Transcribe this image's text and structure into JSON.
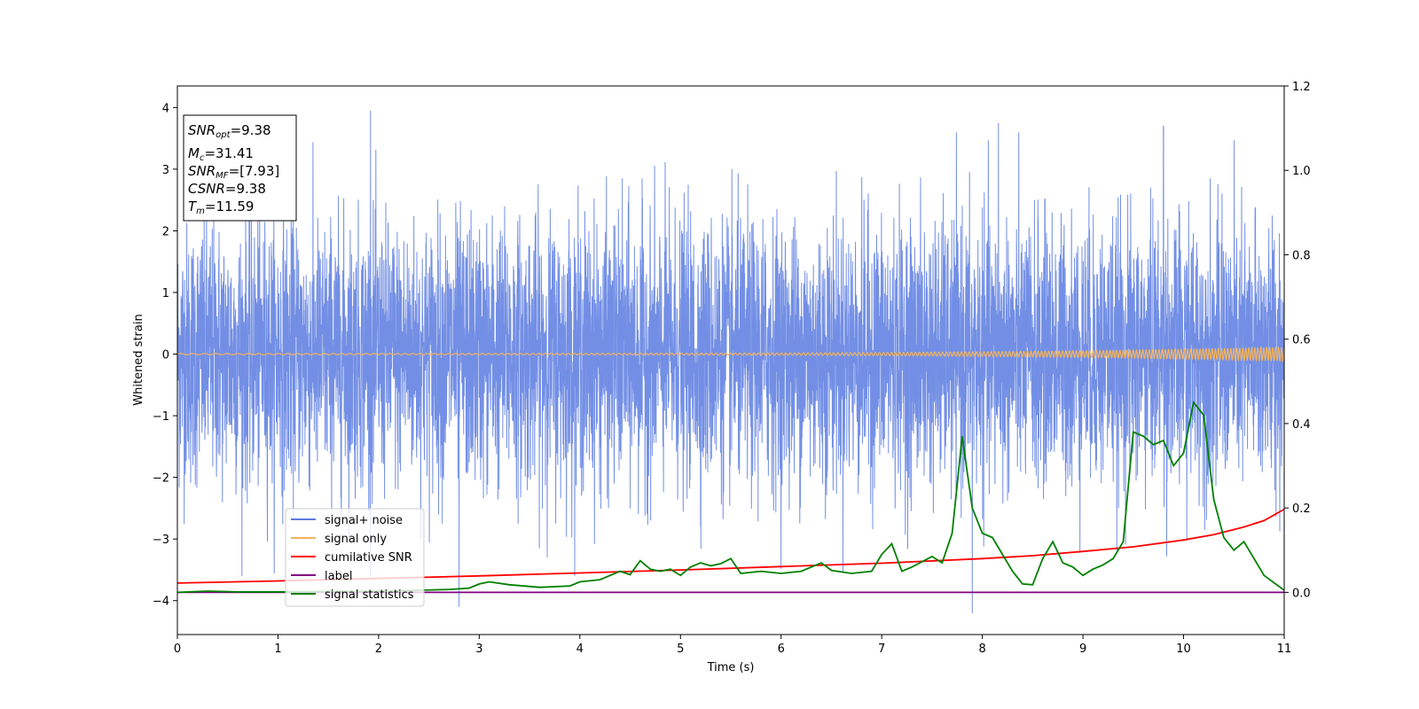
{
  "chart_data": {
    "type": "line",
    "title": "",
    "xlabel": "Time (s)",
    "ylabel": "Whitened strain",
    "xlim": [
      0,
      11
    ],
    "ylim": [
      -4.55,
      4.35
    ],
    "y2lim": [
      -0.1,
      1.2
    ],
    "x_ticks": [
      0,
      1,
      2,
      3,
      4,
      5,
      6,
      7,
      8,
      9,
      10,
      11
    ],
    "y_ticks": [
      -4,
      -3,
      -2,
      -1,
      0,
      1,
      2,
      3,
      4
    ],
    "y2_ticks": [
      "0.0",
      "0.2",
      "0.4",
      "0.6",
      "0.8",
      "1.0",
      "1.2"
    ],
    "grid": false,
    "legend_position": "lower-left",
    "colors": {
      "noise": "#5b7be0",
      "signal": "#f5b35a",
      "cumulative": "#ff0000",
      "label": "#800080",
      "statistics": "#008000"
    },
    "series": [
      {
        "name": "signal+ noise",
        "axis": "left",
        "description_sampled": "noisy whitened strain, approx. Gaussian, std ~1, range about -4.2 to 3.95",
        "notable_peaks": [
          [
            1.92,
            3.95
          ],
          [
            2.8,
            -4.1
          ],
          [
            7.9,
            -4.2
          ],
          [
            8.16,
            3.75
          ],
          [
            9.8,
            3.7
          ]
        ]
      },
      {
        "name": "signal only",
        "axis": "left",
        "chirp": {
          "amplitude_start": 0.01,
          "amplitude_end": 0.11,
          "t_end": 11
        }
      },
      {
        "name": "cumilative SNR",
        "axis": "right",
        "x": [
          0,
          1,
          2,
          3,
          4,
          5,
          6,
          7,
          8,
          8.5,
          9,
          9.5,
          10,
          10.3,
          10.6,
          10.8,
          11
        ],
        "y": [
          0.022,
          0.027,
          0.033,
          0.039,
          0.046,
          0.053,
          0.061,
          0.069,
          0.08,
          0.087,
          0.097,
          0.108,
          0.124,
          0.137,
          0.155,
          0.17,
          0.197
        ]
      },
      {
        "name": "label",
        "axis": "right",
        "x": [
          0,
          11
        ],
        "y": [
          0.0,
          0.0
        ]
      },
      {
        "name": "signal statistics",
        "axis": "right",
        "x": [
          0,
          0.3,
          0.6,
          1,
          1.5,
          2,
          2.4,
          2.7,
          2.9,
          3.0,
          3.1,
          3.3,
          3.6,
          3.9,
          4.0,
          4.2,
          4.4,
          4.5,
          4.6,
          4.7,
          4.8,
          4.9,
          5.0,
          5.1,
          5.2,
          5.3,
          5.4,
          5.5,
          5.6,
          5.8,
          6.0,
          6.2,
          6.4,
          6.5,
          6.7,
          6.9,
          7.0,
          7.1,
          7.2,
          7.3,
          7.5,
          7.6,
          7.7,
          7.8,
          7.9,
          8.0,
          8.1,
          8.2,
          8.3,
          8.4,
          8.5,
          8.6,
          8.7,
          8.8,
          8.9,
          9.0,
          9.1,
          9.2,
          9.3,
          9.4,
          9.5,
          9.6,
          9.7,
          9.8,
          9.9,
          10.0,
          10.1,
          10.2,
          10.3,
          10.4,
          10.5,
          10.6,
          10.7,
          10.8,
          11.0
        ],
        "y": [
          0.0,
          0.003,
          0.001,
          0.001,
          0.002,
          0.003,
          0.005,
          0.007,
          0.01,
          0.02,
          0.025,
          0.018,
          0.012,
          0.015,
          0.025,
          0.03,
          0.05,
          0.042,
          0.075,
          0.055,
          0.05,
          0.055,
          0.04,
          0.06,
          0.07,
          0.063,
          0.068,
          0.08,
          0.045,
          0.05,
          0.045,
          0.05,
          0.07,
          0.052,
          0.045,
          0.05,
          0.09,
          0.115,
          0.05,
          0.06,
          0.085,
          0.07,
          0.14,
          0.37,
          0.2,
          0.14,
          0.13,
          0.09,
          0.05,
          0.02,
          0.018,
          0.08,
          0.12,
          0.07,
          0.06,
          0.04,
          0.055,
          0.065,
          0.08,
          0.12,
          0.38,
          0.37,
          0.35,
          0.36,
          0.3,
          0.33,
          0.45,
          0.42,
          0.22,
          0.13,
          0.1,
          0.12,
          0.08,
          0.04,
          0.005
        ]
      }
    ],
    "annotation": {
      "lines": [
        {
          "main": "SNR",
          "sub": "opt",
          "value": "=9.38"
        },
        {
          "main": "M",
          "sub": "c",
          "value": "=31.41"
        },
        {
          "main": "SNR",
          "sub": "MF",
          "value": "=[7.93]"
        },
        {
          "main": "CSNR",
          "sub": "",
          "value": "=9.38"
        },
        {
          "main": "T",
          "sub": "m",
          "value": "=11.59"
        }
      ]
    }
  }
}
